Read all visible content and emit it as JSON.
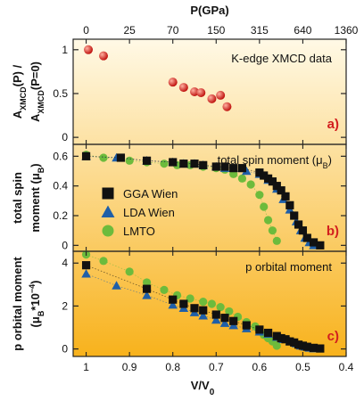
{
  "chart_data": {
    "type": "scatter",
    "top_axis": {
      "label": "P(GPa)",
      "ticks": [
        "0",
        "25",
        "70",
        "150",
        "315",
        "640",
        "1360"
      ],
      "tick_positions_v_over_v0": [
        1.0,
        0.9,
        0.8,
        0.7,
        0.6,
        0.5,
        0.4
      ]
    },
    "x_axis": {
      "label_main": "V/V",
      "label_sub": "0",
      "lim": [
        1.03,
        0.4
      ],
      "ticks": [
        "1",
        "0.9",
        "0.8",
        "0.7",
        "0.6",
        "0.5",
        "0.4"
      ],
      "tick_values": [
        1.0,
        0.9,
        0.8,
        0.7,
        0.6,
        0.5,
        0.4
      ]
    },
    "panels": [
      {
        "id": "a",
        "letter": "a)",
        "note": "K-edge XMCD data",
        "ylabel_line1": "A",
        "ylabel_line1_sub": "XMCD",
        "ylabel_line1_rest": "(P) /",
        "ylabel_line2": "A",
        "ylabel_line2_sub": "XMCD",
        "ylabel_line2_rest": "(P=0)",
        "ylim": [
          -0.08,
          1.12
        ],
        "yticks": [
          "0",
          "0.5",
          "1"
        ],
        "ytick_values": [
          0,
          0.5,
          1
        ],
        "series": [
          {
            "name": "K-edge XMCD data",
            "marker": "sphere",
            "color": "#e0231f",
            "x": [
              0.995,
              0.96,
              0.8,
              0.775,
              0.75,
              0.735,
              0.71,
              0.69,
              0.675
            ],
            "y": [
              1.0,
              0.93,
              0.63,
              0.57,
              0.52,
              0.51,
              0.44,
              0.48,
              0.35
            ]
          }
        ]
      },
      {
        "id": "b",
        "letter": "b)",
        "note": "total spin moment (μB)",
        "ylabel_line1": "total spin",
        "ylabel_line2": "moment (μ",
        "ylabel_line2_sub": "B",
        "ylabel_line2_rest": ")",
        "ylim": [
          -0.04,
          0.68
        ],
        "yticks": [
          "0",
          "0.2",
          "0.4",
          "0.6"
        ],
        "ytick_values": [
          0,
          0.2,
          0.4,
          0.6
        ],
        "series": [
          {
            "name": "GGA Wien",
            "marker": "square",
            "color": "#111111",
            "x": [
              1.0,
              0.92,
              0.86,
              0.8,
              0.775,
              0.75,
              0.73,
              0.7,
              0.68,
              0.66,
              0.64,
              0.6,
              0.59,
              0.58,
              0.57,
              0.56,
              0.55,
              0.54,
              0.53,
              0.52,
              0.51,
              0.5,
              0.49,
              0.475,
              0.46
            ],
            "y": [
              0.6,
              0.59,
              0.57,
              0.56,
              0.55,
              0.55,
              0.54,
              0.53,
              0.53,
              0.52,
              0.52,
              0.49,
              0.47,
              0.45,
              0.43,
              0.4,
              0.37,
              0.33,
              0.27,
              0.2,
              0.14,
              0.1,
              0.05,
              0.02,
              0.0
            ]
          },
          {
            "name": "LDA Wien",
            "marker": "triangle",
            "color": "#1f5fa8",
            "x": [
              1.0,
              0.93,
              0.86,
              0.8,
              0.775,
              0.75,
              0.73,
              0.7,
              0.68,
              0.66,
              0.63,
              0.6,
              0.58,
              0.56,
              0.545,
              0.53,
              0.515,
              0.505,
              0.495,
              0.485,
              0.475
            ],
            "y": [
              0.6,
              0.59,
              0.57,
              0.56,
              0.55,
              0.55,
              0.54,
              0.53,
              0.52,
              0.52,
              0.5,
              0.48,
              0.44,
              0.38,
              0.31,
              0.24,
              0.16,
              0.1,
              0.05,
              0.02,
              0.0
            ]
          },
          {
            "name": "LMTO",
            "marker": "circle",
            "color": "#6dbb3c",
            "x": [
              1.0,
              0.96,
              0.9,
              0.86,
              0.82,
              0.79,
              0.76,
              0.73,
              0.7,
              0.68,
              0.66,
              0.64,
              0.62,
              0.6,
              0.59,
              0.58,
              0.57,
              0.56
            ],
            "y": [
              0.61,
              0.59,
              0.57,
              0.56,
              0.55,
              0.54,
              0.54,
              0.53,
              0.52,
              0.51,
              0.48,
              0.45,
              0.41,
              0.34,
              0.26,
              0.17,
              0.1,
              0.03
            ]
          }
        ]
      },
      {
        "id": "c",
        "letter": "c)",
        "note": "p orbital moment",
        "ylabel_line1": "p orbital moment",
        "ylabel_line2": "(μ",
        "ylabel_line2_sub": "B",
        "ylabel_line2_rest": "*10",
        "ylabel_line2_sup": "−4",
        "ylabel_line2_end": ")",
        "ylim": [
          -0.35,
          4.55
        ],
        "yticks": [
          "0",
          "2",
          "4"
        ],
        "ytick_values": [
          0,
          2,
          4
        ],
        "series": [
          {
            "name": "GGA Wien",
            "marker": "square",
            "color": "#111111",
            "x": [
              1.0,
              0.86,
              0.8,
              0.775,
              0.75,
              0.73,
              0.7,
              0.68,
              0.66,
              0.63,
              0.6,
              0.58,
              0.56,
              0.55,
              0.54,
              0.53,
              0.52,
              0.51,
              0.5,
              0.49,
              0.475,
              0.46
            ],
            "y": [
              3.9,
              2.8,
              2.3,
              2.1,
              1.9,
              1.8,
              1.6,
              1.45,
              1.3,
              1.1,
              0.9,
              0.75,
              0.6,
              0.5,
              0.45,
              0.35,
              0.3,
              0.2,
              0.15,
              0.1,
              0.05,
              0.02
            ]
          },
          {
            "name": "LDA Wien",
            "marker": "triangle",
            "color": "#1f5fa8",
            "x": [
              1.0,
              0.93,
              0.86,
              0.8,
              0.775,
              0.75,
              0.73,
              0.7,
              0.68,
              0.66,
              0.63,
              0.6,
              0.58,
              0.56,
              0.545,
              0.53,
              0.515,
              0.505,
              0.495,
              0.485,
              0.475
            ],
            "y": [
              3.5,
              2.95,
              2.5,
              2.05,
              1.9,
              1.7,
              1.55,
              1.35,
              1.2,
              1.1,
              0.95,
              0.8,
              0.7,
              0.55,
              0.45,
              0.35,
              0.25,
              0.15,
              0.1,
              0.05,
              0.02
            ]
          },
          {
            "name": "LMTO",
            "marker": "circle",
            "color": "#6dbb3c",
            "x": [
              1.0,
              0.96,
              0.9,
              0.86,
              0.82,
              0.79,
              0.76,
              0.73,
              0.71,
              0.69,
              0.67,
              0.65,
              0.63,
              0.61,
              0.6,
              0.59,
              0.58,
              0.57,
              0.56
            ],
            "y": [
              4.4,
              4.1,
              3.6,
              3.1,
              2.75,
              2.5,
              2.35,
              2.2,
              2.1,
              1.95,
              1.75,
              1.5,
              1.25,
              1.05,
              0.85,
              0.65,
              0.5,
              0.35,
              0.15
            ]
          }
        ]
      }
    ],
    "legend": {
      "placement": "panel b, left",
      "entries": [
        {
          "name": "GGA Wien",
          "marker": "square",
          "color": "#111111"
        },
        {
          "name": "LDA Wien",
          "marker": "triangle",
          "color": "#1f5fa8"
        },
        {
          "name": "LMTO",
          "marker": "circle",
          "color": "#6dbb3c"
        }
      ]
    },
    "background_gradient": {
      "top": "#fff9e6",
      "bottom": "#f8b21c"
    }
  }
}
